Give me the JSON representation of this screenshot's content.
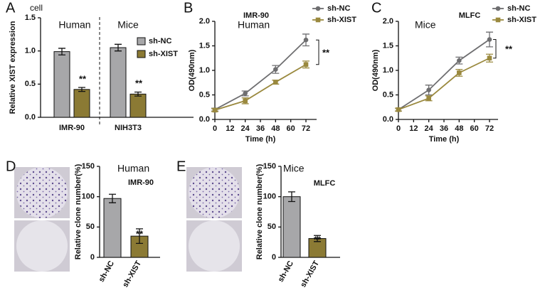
{
  "chart_data": [
    {
      "type": "bar",
      "panel": "A",
      "title": "cell",
      "group_labels": [
        "Human",
        "Mice"
      ],
      "ylabel": "Relative XIST expression",
      "categories": [
        "IMR-90",
        "NIH3T3"
      ],
      "series": [
        {
          "name": "sh-NC",
          "color": "#a7a7a9",
          "values": [
            0.99,
            1.05
          ],
          "errors": [
            0.05,
            0.05
          ]
        },
        {
          "name": "sh-XIST",
          "color": "#8b7a34",
          "values": [
            0.42,
            0.35
          ],
          "errors": [
            0.03,
            0.03
          ]
        }
      ],
      "ylim": [
        0,
        1.5
      ],
      "yticks": [
        {
          "value": 0,
          "label": "0.0"
        },
        0.5,
        {
          "value": 1,
          "label": "1.0"
        },
        1.5
      ],
      "annotations": [
        "**",
        "**"
      ]
    },
    {
      "type": "line",
      "panel": "B",
      "title": "IMR-90",
      "subtitle": "Human",
      "ylabel": "OD(490nm)",
      "xlabel": "Time (h)",
      "x": [
        0,
        24,
        48,
        72
      ],
      "series": [
        {
          "name": "sh-NC",
          "color": "#6e6e70",
          "values": [
            0.2,
            0.53,
            1.02,
            1.62
          ],
          "errors": [
            0.03,
            0.05,
            0.08,
            0.12
          ]
        },
        {
          "name": "sh-XIST",
          "color": "#9a893e",
          "values": [
            0.19,
            0.38,
            0.76,
            1.12
          ],
          "errors": [
            0.03,
            0.06,
            0.04,
            0.07
          ]
        }
      ],
      "xlim": [
        0,
        72
      ],
      "xticks": [
        0,
        12,
        24,
        36,
        48,
        60,
        72
      ],
      "ylim": [
        0,
        2
      ],
      "yticks": [
        {
          "value": 0,
          "label": "0.0"
        },
        0.5,
        {
          "value": 1,
          "label": "1.0"
        },
        1.5,
        {
          "value": 2,
          "label": "2.0"
        }
      ],
      "annotations": [
        "**"
      ]
    },
    {
      "type": "line",
      "panel": "C",
      "title": "MLFC",
      "subtitle": "Mice",
      "ylabel": "OD(490nm)",
      "xlabel": "Time (h)",
      "x": [
        0,
        24,
        48,
        72
      ],
      "series": [
        {
          "name": "sh-NC",
          "color": "#6e6e70",
          "values": [
            0.2,
            0.6,
            1.2,
            1.63
          ],
          "errors": [
            0.03,
            0.1,
            0.07,
            0.15
          ]
        },
        {
          "name": "sh-XIST",
          "color": "#9a893e",
          "values": [
            0.2,
            0.43,
            0.95,
            1.25
          ],
          "errors": [
            0.03,
            0.05,
            0.07,
            0.08
          ]
        }
      ],
      "xlim": [
        0,
        72
      ],
      "xticks": [
        0,
        12,
        24,
        36,
        48,
        60,
        72
      ],
      "ylim": [
        0,
        2
      ],
      "yticks": [
        {
          "value": 0,
          "label": "0.0"
        },
        0.5,
        {
          "value": 1,
          "label": "1.0"
        },
        1.5,
        {
          "value": 2,
          "label": "2.0"
        }
      ],
      "annotations": [
        "**"
      ]
    },
    {
      "type": "bar",
      "panel": "D",
      "title": "IMR-90",
      "subtitle": "Human",
      "ylabel": "Relative clone number(%)",
      "categories": [
        "sh-NC",
        "sh-XIST"
      ],
      "values": [
        97,
        35
      ],
      "errors": [
        7,
        12
      ],
      "colors": [
        "#a7a7a9",
        "#8b7a34"
      ],
      "ylim": [
        0,
        150
      ],
      "yticks": [
        0,
        50,
        100,
        150
      ],
      "annotations": [
        "**"
      ]
    },
    {
      "type": "bar",
      "panel": "E",
      "title": "MLFC",
      "subtitle": "Mice",
      "ylabel": "Relative clone number(%)",
      "categories": [
        "sh-NC",
        "sh-XIST"
      ],
      "values": [
        100,
        31
      ],
      "errors": [
        8,
        5
      ],
      "colors": [
        "#a7a7a9",
        "#8b7a34"
      ],
      "ylim": [
        0,
        150
      ],
      "yticks": [
        0,
        50,
        100,
        150
      ],
      "annotations": [
        "**"
      ]
    }
  ]
}
